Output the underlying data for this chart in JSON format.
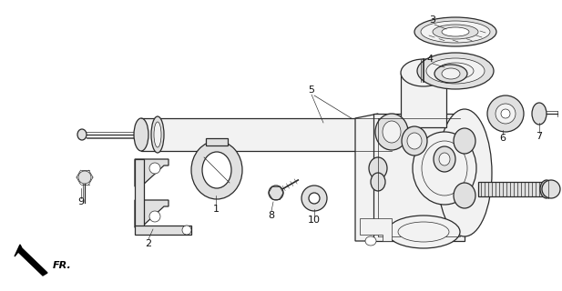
{
  "background_color": "#ffffff",
  "fig_width": 6.17,
  "fig_height": 3.2,
  "dpi": 100,
  "line_color": "#2a2a2a",
  "fill_light": "#f2f2f2",
  "fill_mid": "#e0e0e0",
  "fill_dark": "#c8c8c8",
  "lw_main": 0.9,
  "lw_thin": 0.5,
  "lw_thick": 1.2
}
